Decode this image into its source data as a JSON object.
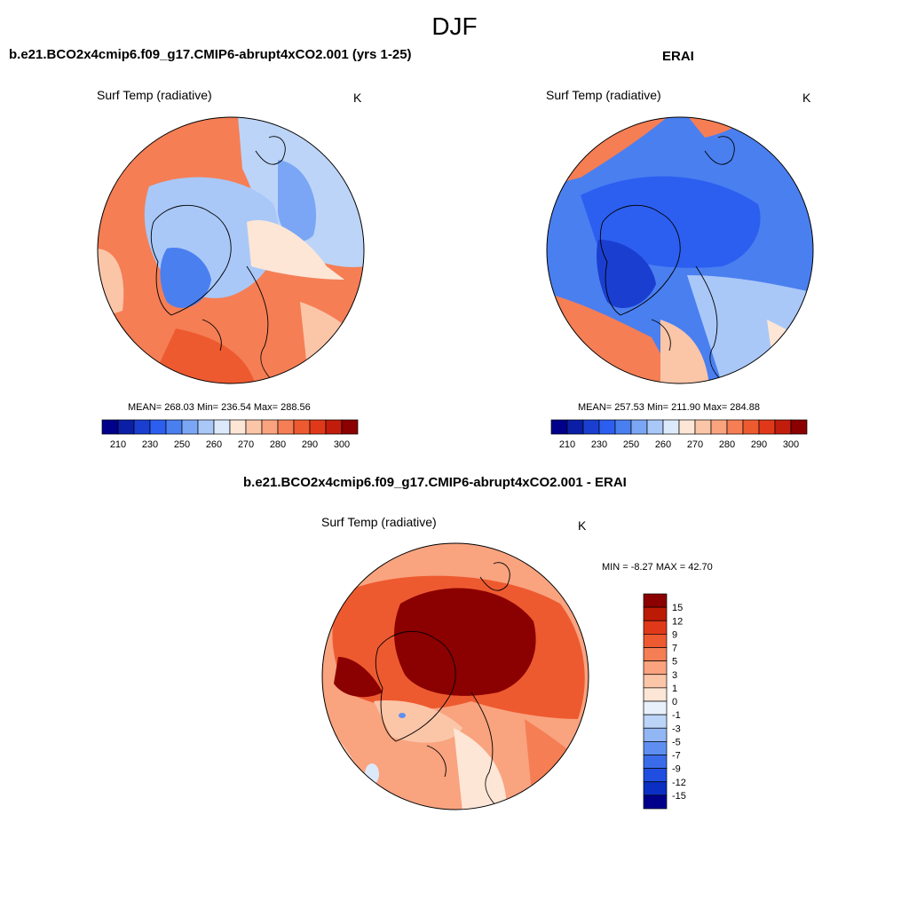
{
  "page": {
    "season": "DJF"
  },
  "panels": [
    {
      "title": "b.e21.BCO2x4cmip6.f09_g17.CMIP6-abrupt4xCO2.001 (yrs 1-25)",
      "variable": "Surf Temp (radiative)",
      "units": "K",
      "stats": "MEAN= 268.03  Min= 236.54  Max= 288.56"
    },
    {
      "title": "ERAI",
      "variable": "Surf Temp (radiative)",
      "units": "K",
      "stats": "MEAN= 257.53  Min= 211.90  Max= 284.88"
    },
    {
      "title": "b.e21.BCO2x4cmip6.f09_g17.CMIP6-abrupt4xCO2.001 - ERAI",
      "variable": "Surf Temp (radiative)",
      "units": "K",
      "stats": "MIN =  -8.27 MAX =  42.70"
    }
  ],
  "abs_colorbar": {
    "colors": [
      "#00008b",
      "#0a1fa5",
      "#1a3fd0",
      "#2c5ff0",
      "#4a7ff0",
      "#7aa6f5",
      "#a9c8f8",
      "#dbe9fb",
      "#fde6d6",
      "#fbc5a8",
      "#f9a37f",
      "#f57e55",
      "#ee5a30",
      "#e0391a",
      "#c21d0c",
      "#8b0000"
    ],
    "labels": [
      "210",
      "230",
      "250",
      "260",
      "270",
      "280",
      "290",
      "300"
    ]
  },
  "diff_colorbar": {
    "colors": [
      "#8b0000",
      "#bd1a05",
      "#e0391a",
      "#ee5a30",
      "#f57e55",
      "#f9a37f",
      "#fbc5a8",
      "#fde6d6",
      "#e8f0fb",
      "#bcd4f7",
      "#92b5f4",
      "#5e8ff0",
      "#3a6cea",
      "#1f4ee0",
      "#0a2fc2",
      "#00008b"
    ],
    "labels": [
      "15",
      "12",
      "9",
      "7",
      "5",
      "3",
      "1",
      "0",
      "-1",
      "-3",
      "-5",
      "-7",
      "-9",
      "-12",
      "-15"
    ]
  }
}
